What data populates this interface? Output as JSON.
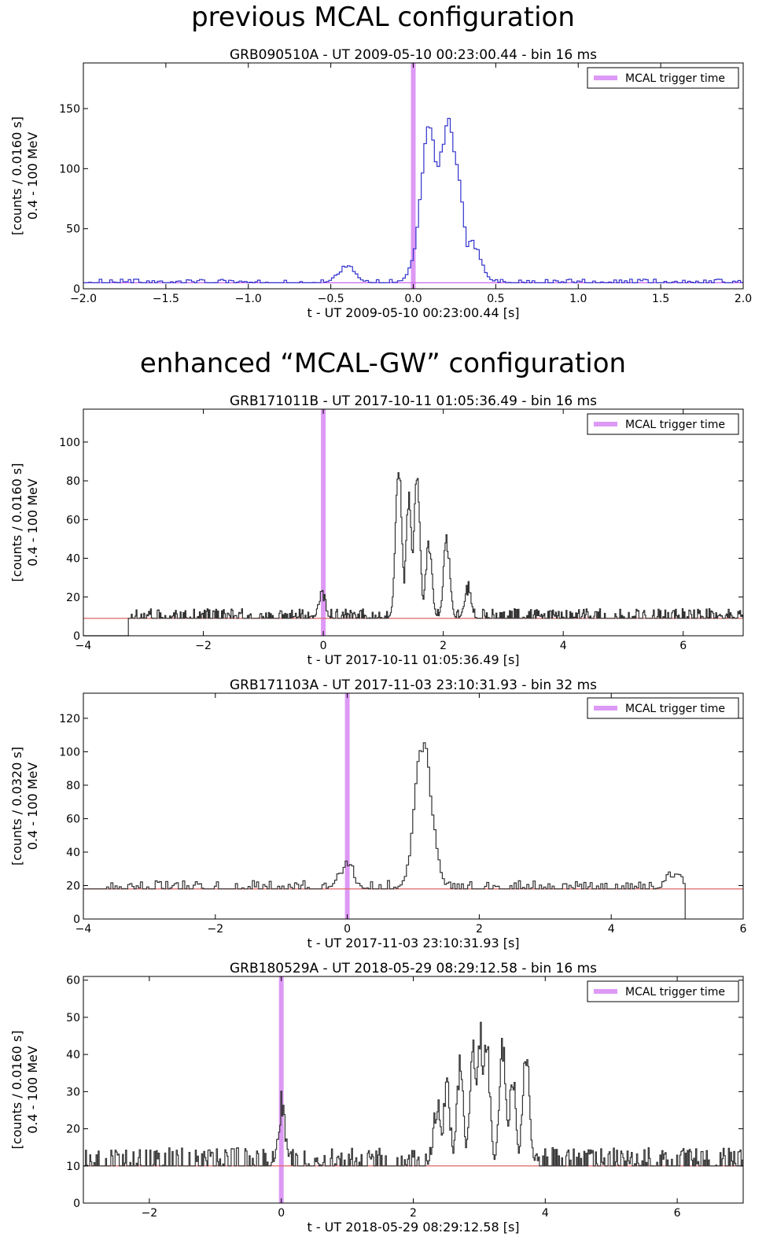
{
  "section_titles": {
    "previous": "previous MCAL configuration",
    "enhanced": "enhanced “MCAL-GW” configuration"
  },
  "chart_data": [
    {
      "type": "line",
      "title": "GRB090510A - UT 2009-05-10 00:23:00.44 - bin 16 ms",
      "xlabel": "t - UT 2009-05-10 00:23:00.44 [s]",
      "ylabel": [
        "[counts / 0.0160 s]",
        "0.4 - 100 MeV"
      ],
      "xlim": [
        -2.0,
        2.0
      ],
      "ylim": [
        0,
        188
      ],
      "xticks": [
        -2.0,
        -1.5,
        -1.0,
        -0.5,
        0.0,
        0.5,
        1.0,
        1.5,
        2.0
      ],
      "xtick_labels": [
        "−2.0",
        "−1.5",
        "−1.0",
        "−0.5",
        "0.0",
        "0.5",
        "1.0",
        "1.5",
        "2.0"
      ],
      "yticks": [
        0,
        50,
        100,
        150
      ],
      "ytick_labels": [
        "0",
        "50",
        "100",
        "150"
      ],
      "series_color": "#3333cc",
      "baseline": 5,
      "baseline_color": "#cc66ee",
      "trigger_time": 0.0,
      "trigger_color": "#dd99f5",
      "legend": {
        "label": "MCAL trigger time",
        "position": "top-right"
      },
      "bin": 0.016,
      "noise_amp": 3,
      "seed": 11,
      "peaks": [
        {
          "x": -0.41,
          "y": 19
        },
        {
          "x": -0.002,
          "y": 10
        },
        {
          "x": 0.05,
          "y": 50
        },
        {
          "x": 0.09,
          "y": 135
        },
        {
          "x": 0.125,
          "y": 87
        },
        {
          "x": 0.17,
          "y": 118
        },
        {
          "x": 0.205,
          "y": 140
        },
        {
          "x": 0.24,
          "y": 107
        },
        {
          "x": 0.27,
          "y": 48
        },
        {
          "x": 0.295,
          "y": 20
        },
        {
          "x": 0.35,
          "y": 38
        },
        {
          "x": 0.39,
          "y": 14
        }
      ]
    },
    {
      "type": "line",
      "title": "GRB171011B - UT 2017-10-11 01:05:36.49 - bin 16 ms",
      "xlabel": "t - UT 2017-10-11 01:05:36.49 [s]",
      "ylabel": [
        "[counts / 0.0160 s]",
        "0.4 - 100 MeV"
      ],
      "xlim": [
        -4,
        7
      ],
      "ylim": [
        0,
        117
      ],
      "xticks": [
        -4,
        -2,
        0,
        2,
        4,
        6
      ],
      "xtick_labels": [
        "−4",
        "−2",
        "0",
        "2",
        "4",
        "6"
      ],
      "yticks": [
        0,
        20,
        40,
        60,
        80,
        100
      ],
      "ytick_labels": [
        "0",
        "20",
        "40",
        "60",
        "80",
        "100"
      ],
      "series_color": "#333333",
      "baseline": 9,
      "baseline_color": "#dd6666",
      "trigger_time": 0.0,
      "trigger_color": "#dd99f5",
      "legend": {
        "label": "MCAL trigger time",
        "position": "top-right"
      },
      "bin": 0.016,
      "noise_amp": 5,
      "seed": 23,
      "start_x": -3.25,
      "peaks": [
        {
          "x": -0.03,
          "y": 24
        },
        {
          "x": 1.25,
          "y": 88
        },
        {
          "x": 1.42,
          "y": 70
        },
        {
          "x": 1.55,
          "y": 82
        },
        {
          "x": 1.75,
          "y": 48
        },
        {
          "x": 2.05,
          "y": 49
        },
        {
          "x": 2.4,
          "y": 25
        }
      ]
    },
    {
      "type": "line",
      "title": "GRB171103A - UT 2017-11-03 23:10:31.93 - bin 32 ms",
      "xlabel": "t - UT 2017-11-03 23:10:31.93 [s]",
      "ylabel": [
        "[counts / 0.0320 s]",
        "0.4 - 100 MeV"
      ],
      "xlim": [
        -4,
        6
      ],
      "ylim": [
        0,
        135
      ],
      "xticks": [
        -4,
        -2,
        0,
        2,
        4,
        6
      ],
      "xtick_labels": [
        "−4",
        "−2",
        "0",
        "2",
        "4",
        "6"
      ],
      "yticks": [
        0,
        20,
        40,
        60,
        80,
        100,
        120
      ],
      "ytick_labels": [
        "0",
        "20",
        "40",
        "60",
        "80",
        "100",
        "120"
      ],
      "series_color": "#333333",
      "baseline": 18,
      "baseline_color": "#dd6666",
      "trigger_time": 0.0,
      "trigger_color": "#dd99f5",
      "legend": {
        "label": "MCAL trigger time",
        "position": "top-right"
      },
      "bin": 0.032,
      "noise_amp": 5,
      "seed": 37,
      "end_x": 5.12,
      "peaks": [
        {
          "x": -0.03,
          "y": 34
        },
        {
          "x": 1.05,
          "y": 60
        },
        {
          "x": 1.1,
          "y": 98
        },
        {
          "x": 1.16,
          "y": 102
        },
        {
          "x": 1.22,
          "y": 72
        },
        {
          "x": 1.27,
          "y": 40
        },
        {
          "x": 4.95,
          "y": 30
        }
      ]
    },
    {
      "type": "line",
      "title": "GRB180529A - UT 2018-05-29 08:29:12.58 - bin 16 ms",
      "xlabel": "t - UT 2018-05-29 08:29:12.58 [s]",
      "ylabel": [
        "[counts / 0.0160 s]",
        "0.4 - 100 MeV"
      ],
      "xlim": [
        -3,
        7
      ],
      "ylim": [
        0,
        61
      ],
      "xticks": [
        -2,
        0,
        2,
        4,
        6
      ],
      "xtick_labels": [
        "−2",
        "0",
        "2",
        "4",
        "6"
      ],
      "yticks": [
        0,
        10,
        20,
        30,
        40,
        50,
        60
      ],
      "ytick_labels": [
        "0",
        "10",
        "20",
        "30",
        "40",
        "50",
        "60"
      ],
      "series_color": "#333333",
      "baseline": 10,
      "baseline_color": "#dd6666",
      "trigger_time": 0.0,
      "trigger_color": "#dd99f5",
      "legend": {
        "label": "MCAL trigger time",
        "position": "top-right"
      },
      "bin": 0.016,
      "noise_amp": 5,
      "seed": 53,
      "peaks": [
        {
          "x": 0.0,
          "y": 26
        },
        {
          "x": 2.35,
          "y": 27
        },
        {
          "x": 2.5,
          "y": 30
        },
        {
          "x": 2.7,
          "y": 37
        },
        {
          "x": 2.9,
          "y": 43
        },
        {
          "x": 3.0,
          "y": 46
        },
        {
          "x": 3.1,
          "y": 43
        },
        {
          "x": 3.35,
          "y": 42
        },
        {
          "x": 3.5,
          "y": 32
        },
        {
          "x": 3.7,
          "y": 40
        }
      ]
    }
  ]
}
